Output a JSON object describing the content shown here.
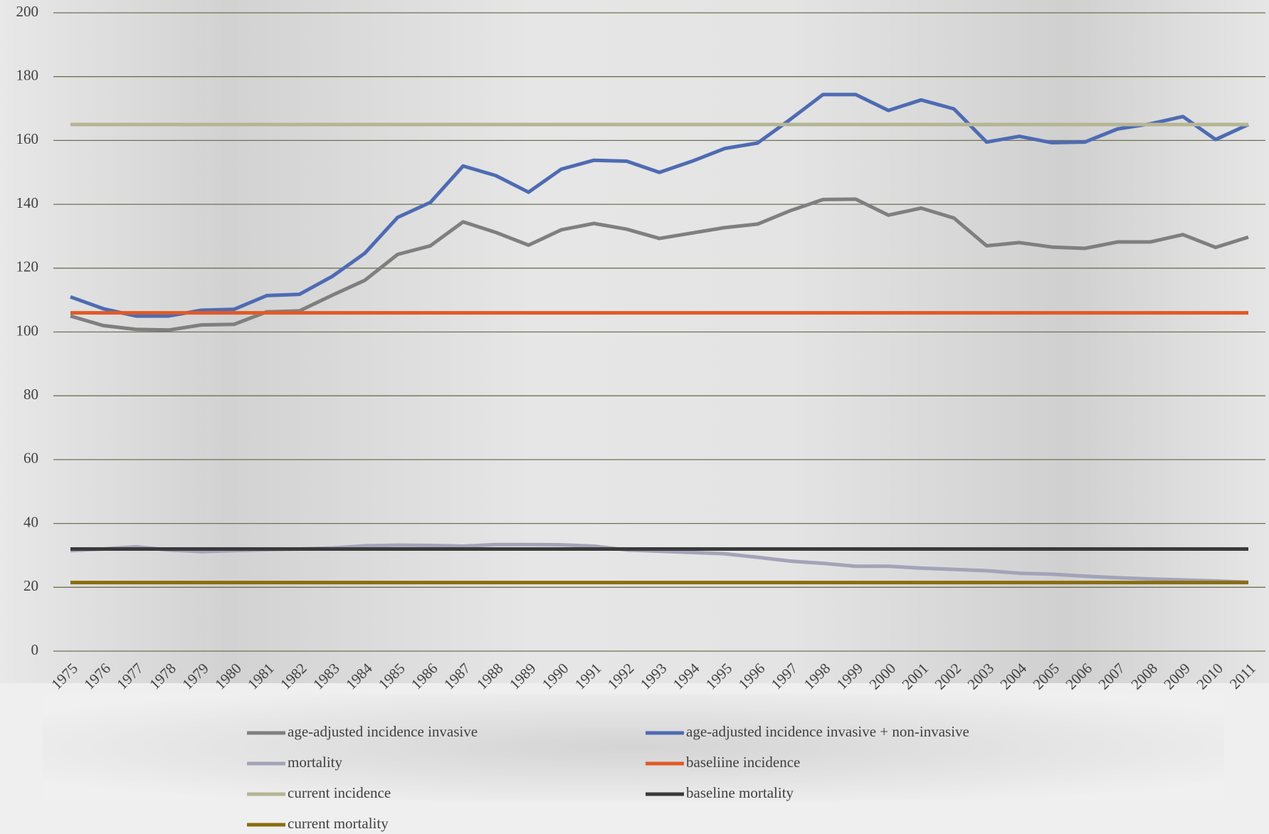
{
  "chart_data": {
    "type": "line",
    "x": [
      1975,
      1976,
      1977,
      1978,
      1979,
      1980,
      1981,
      1982,
      1983,
      1984,
      1985,
      1986,
      1987,
      1988,
      1989,
      1990,
      1991,
      1992,
      1993,
      1994,
      1995,
      1996,
      1997,
      1998,
      1999,
      2000,
      2001,
      2002,
      2003,
      2004,
      2005,
      2006,
      2007,
      2008,
      2009,
      2010,
      2011
    ],
    "ylim": [
      0,
      200
    ],
    "yticks": [
      0,
      20,
      40,
      60,
      80,
      100,
      120,
      140,
      160,
      180,
      200
    ],
    "grid": true,
    "series": [
      {
        "name": "age-adjusted incidence invasive",
        "color": "#7f7f7f",
        "values": [
          105,
          102,
          100.8,
          100.6,
          102.2,
          102.4,
          106.3,
          106.6,
          111.5,
          116.2,
          124.3,
          127,
          134.5,
          131.2,
          127.2,
          132,
          134,
          132.2,
          129.3,
          131,
          132.7,
          133.8,
          138,
          141.5,
          141.6,
          136.6,
          138.8,
          135.7,
          127,
          128,
          126.6,
          126.2,
          128.2,
          128.2,
          130.5,
          126.5,
          129.7
        ]
      },
      {
        "name": "age-adjusted incidence invasive + non-invasive",
        "color": "#4e6bb3",
        "values": [
          111,
          107.3,
          105,
          105,
          106.8,
          107.1,
          111.4,
          111.8,
          117.4,
          124.7,
          135.9,
          140.6,
          152,
          149,
          143.8,
          151,
          153.8,
          153.5,
          150,
          153.5,
          157.5,
          159.2,
          166.6,
          174.4,
          174.4,
          169.4,
          172.7,
          169.9,
          159.5,
          161.3,
          159.3,
          159.5,
          163.6,
          165.2,
          167.5,
          160.3,
          165
        ]
      },
      {
        "name": "mortality",
        "color": "#a3a3b8",
        "values": [
          31.5,
          32,
          32.7,
          31.7,
          31.2,
          31.5,
          31.8,
          32,
          32.3,
          33,
          33.2,
          33.1,
          32.9,
          33.4,
          33.4,
          33.3,
          32.9,
          31.7,
          31.3,
          30.9,
          30.5,
          29.4,
          28.2,
          27.5,
          26.6,
          26.6,
          26,
          25.6,
          25.2,
          24.4,
          24.1,
          23.5,
          23,
          22.6,
          22.3,
          22,
          21.6
        ]
      },
      {
        "name": "baseliine incidence",
        "color": "#e05a26",
        "values": [
          106,
          106,
          106,
          106,
          106,
          106,
          106,
          106,
          106,
          106,
          106,
          106,
          106,
          106,
          106,
          106,
          106,
          106,
          106,
          106,
          106,
          106,
          106,
          106,
          106,
          106,
          106,
          106,
          106,
          106,
          106,
          106,
          106,
          106,
          106,
          106,
          106
        ]
      },
      {
        "name": "current incidence",
        "color": "#b5b596",
        "values": [
          165,
          165,
          165,
          165,
          165,
          165,
          165,
          165,
          165,
          165,
          165,
          165,
          165,
          165,
          165,
          165,
          165,
          165,
          165,
          165,
          165,
          165,
          165,
          165,
          165,
          165,
          165,
          165,
          165,
          165,
          165,
          165,
          165,
          165,
          165,
          165,
          165
        ]
      },
      {
        "name": "baseline mortality",
        "color": "#3a3a3a",
        "values": [
          32,
          32,
          32,
          32,
          32,
          32,
          32,
          32,
          32,
          32,
          32,
          32,
          32,
          32,
          32,
          32,
          32,
          32,
          32,
          32,
          32,
          32,
          32,
          32,
          32,
          32,
          32,
          32,
          32,
          32,
          32,
          32,
          32,
          32,
          32,
          32,
          32
        ]
      },
      {
        "name": "current mortality",
        "color": "#8a6d0f",
        "values": [
          21.5,
          21.5,
          21.5,
          21.5,
          21.5,
          21.5,
          21.5,
          21.5,
          21.5,
          21.5,
          21.5,
          21.5,
          21.5,
          21.5,
          21.5,
          21.5,
          21.5,
          21.5,
          21.5,
          21.5,
          21.5,
          21.5,
          21.5,
          21.5,
          21.5,
          21.5,
          21.5,
          21.5,
          21.5,
          21.5,
          21.5,
          21.5,
          21.5,
          21.5,
          21.5,
          21.5,
          21.5
        ]
      }
    ]
  }
}
